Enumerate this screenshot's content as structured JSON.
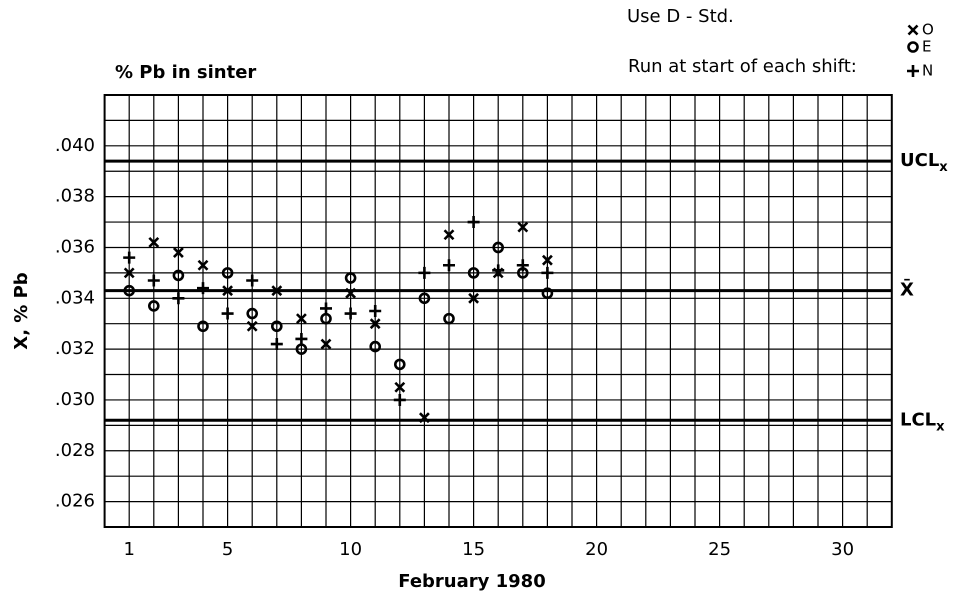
{
  "chart_data": {
    "type": "scatter",
    "title": "% Pb in sinter",
    "notes": [
      "Use D - Std.",
      "Run at start of each shift:"
    ],
    "x_label": "February 1980",
    "y_label": "X, % Pb",
    "x": [
      1,
      2,
      3,
      4,
      5,
      6,
      7,
      8,
      9,
      10,
      11,
      12,
      13,
      14,
      15,
      16,
      17,
      18
    ],
    "series": [
      {
        "name": "O",
        "marker": "x",
        "color": "#000000",
        "values": [
          0.035,
          0.0362,
          0.0358,
          0.0353,
          0.0343,
          0.0329,
          0.0343,
          0.0332,
          0.0322,
          0.0342,
          0.033,
          0.0305,
          0.0293,
          0.0365,
          0.034,
          0.035,
          0.0368,
          0.0355
        ]
      },
      {
        "name": "E",
        "marker": "o",
        "color": "#000000",
        "values": [
          0.0343,
          0.0337,
          0.0349,
          0.0329,
          0.035,
          0.0334,
          0.0329,
          0.032,
          0.0332,
          0.0348,
          0.0321,
          0.0314,
          0.034,
          0.0332,
          0.035,
          0.036,
          0.035,
          0.0342
        ]
      },
      {
        "name": "N",
        "marker": "+",
        "color": "#000000",
        "values": [
          0.0356,
          0.0347,
          0.034,
          0.0344,
          0.0334,
          0.0347,
          0.0322,
          0.0324,
          0.0336,
          0.0334,
          0.0335,
          0.03,
          0.035,
          0.0353,
          0.037,
          0.0351,
          0.0353,
          0.035
        ]
      }
    ],
    "control_lines": [
      {
        "label": "UCL",
        "subscript": "x",
        "value": 0.0394
      },
      {
        "label": "X̄",
        "value": 0.0343
      },
      {
        "label": "LCL",
        "subscript": "x",
        "value": 0.0292
      }
    ],
    "xlim": [
      0,
      32
    ],
    "ylim": [
      0.025,
      0.042
    ],
    "xticks": [
      1,
      5,
      10,
      15,
      20,
      25,
      30
    ],
    "yticks": [
      {
        "value": 0.026,
        "label": ".026"
      },
      {
        "value": 0.028,
        "label": ".028"
      },
      {
        "value": 0.03,
        "label": ".030"
      },
      {
        "value": 0.032,
        "label": ".032"
      },
      {
        "value": 0.034,
        "label": ".034"
      },
      {
        "value": 0.036,
        "label": ".036"
      },
      {
        "value": 0.038,
        "label": ".038"
      },
      {
        "value": 0.04,
        "label": ".040"
      }
    ],
    "xgrid": [
      0,
      1,
      2,
      3,
      4,
      5,
      6,
      7,
      8,
      9,
      10,
      11,
      12,
      13,
      14,
      15,
      16,
      17,
      18,
      19,
      20,
      21,
      22,
      23,
      24,
      25,
      26,
      27,
      28,
      29,
      30,
      31,
      32
    ],
    "ygrid": [
      0.025,
      0.026,
      0.027,
      0.028,
      0.029,
      0.03,
      0.031,
      0.032,
      0.033,
      0.034,
      0.035,
      0.036,
      0.037,
      0.038,
      0.039,
      0.04,
      0.041,
      0.042
    ],
    "grid": true,
    "legend": "upper right"
  }
}
